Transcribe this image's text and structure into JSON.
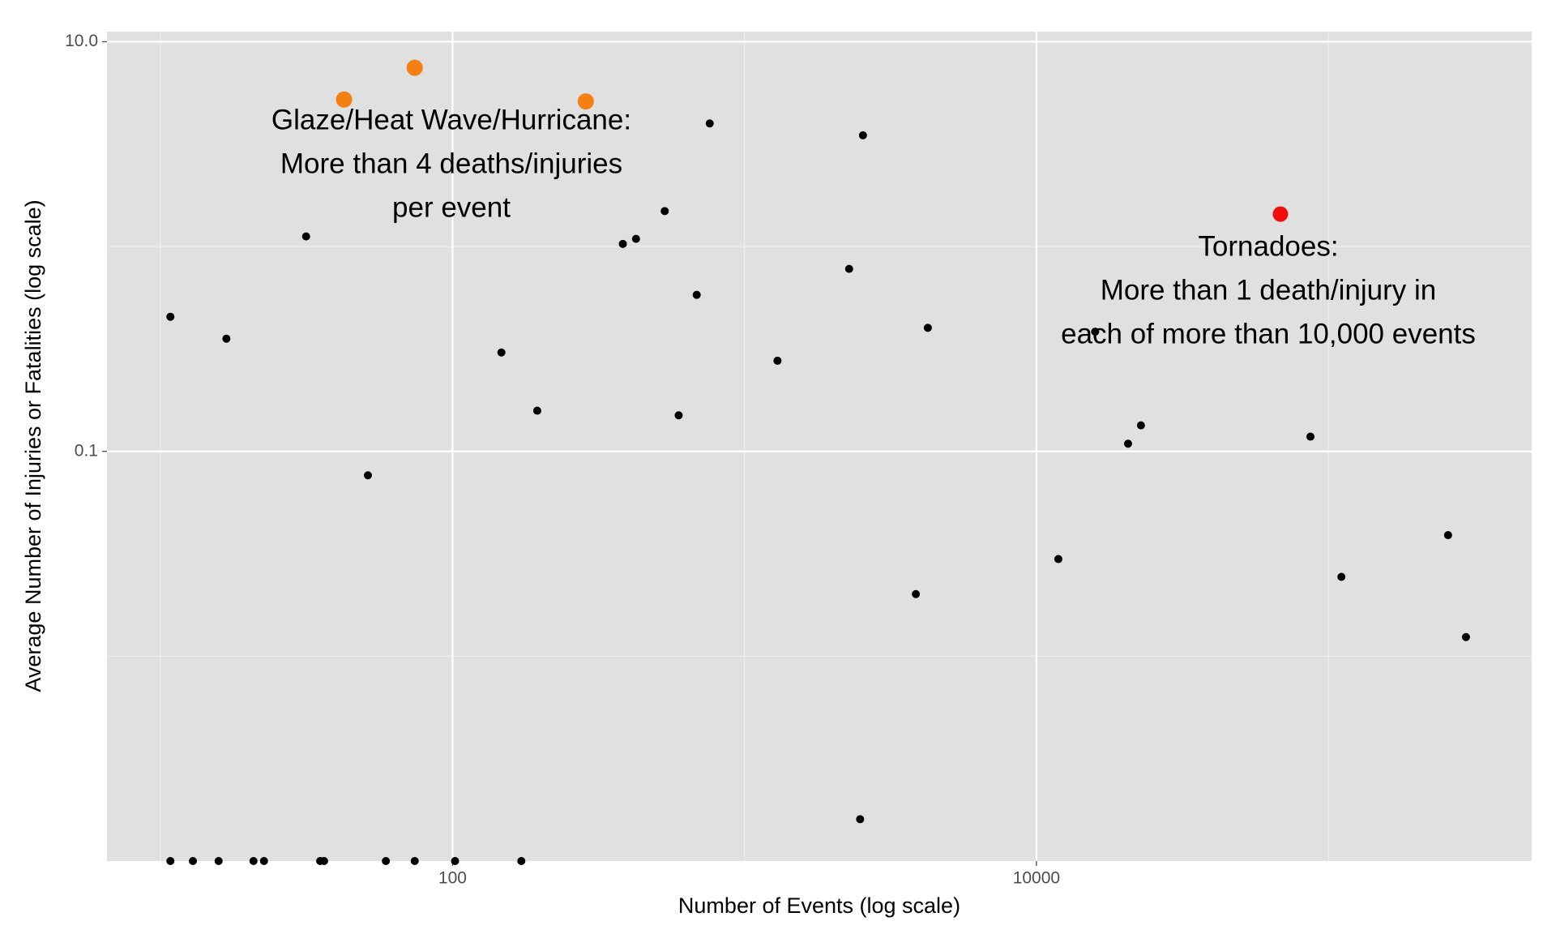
{
  "chart_data": {
    "type": "scatter",
    "x_label": "Number of Events (log scale)",
    "y_label": "Average Number of Injuries or Fatalities (log scale)",
    "xscale": "log",
    "yscale": "log",
    "grid": true,
    "xlim": [
      6.55,
      497000
    ],
    "ylim": [
      0.001,
      11.2
    ],
    "xticks": [
      100,
      10000
    ],
    "yticks": [
      {
        "value": 10,
        "label": "10.0"
      },
      0.1
    ],
    "xminorticks": [
      10,
      1000,
      100000
    ],
    "yminorticks": [
      1,
      0.01
    ],
    "series": [
      {
        "color": "#000000",
        "size": 5,
        "x": [
          10.8,
          16.8,
          31.5,
          51.3,
          147,
          195,
          383,
          425,
          533,
          760,
          686,
          595,
          1297,
          2282,
          2545,
          4246,
          3864,
          2489,
          11885,
          15890,
          20600,
          22800,
          86800,
          110800,
          257000,
          296000,
          10.8,
          12.9,
          15.8,
          20.8,
          22.6,
          35.2,
          36.3,
          59.1,
          74.2,
          102,
          172
        ],
        "values": [
          0.454,
          0.355,
          1.12,
          0.0764,
          0.304,
          0.158,
          1.03,
          1.09,
          1.49,
          3.99,
          0.581,
          0.15,
          0.277,
          0.778,
          3.49,
          0.401,
          0.0201,
          0.0016,
          0.0298,
          0.384,
          0.109,
          0.134,
          0.118,
          0.0244,
          0.039,
          0.0124,
          0.001,
          0.001,
          0.001,
          0.001,
          0.001,
          0.001,
          0.001,
          0.001,
          0.001,
          0.001,
          0.001
        ]
      },
      {
        "color": "#f47f12",
        "size": 10,
        "x": [
          42.5,
          74.2,
          286
        ],
        "values": [
          5.22,
          7.46,
          5.11
        ]
      },
      {
        "color": "#f20d0d",
        "size": 9.5,
        "x": [
          68500
        ],
        "values": [
          1.44
        ]
      }
    ],
    "annotations": [
      {
        "lines": [
          "Glaze/Heat Wave/Hurricane:",
          "More than 4 deaths/injuries",
          "per event"
        ]
      },
      {
        "lines": [
          "Tornadoes:",
          "More than 1 death/injury in",
          "each of more than 10,000 events"
        ]
      }
    ]
  }
}
